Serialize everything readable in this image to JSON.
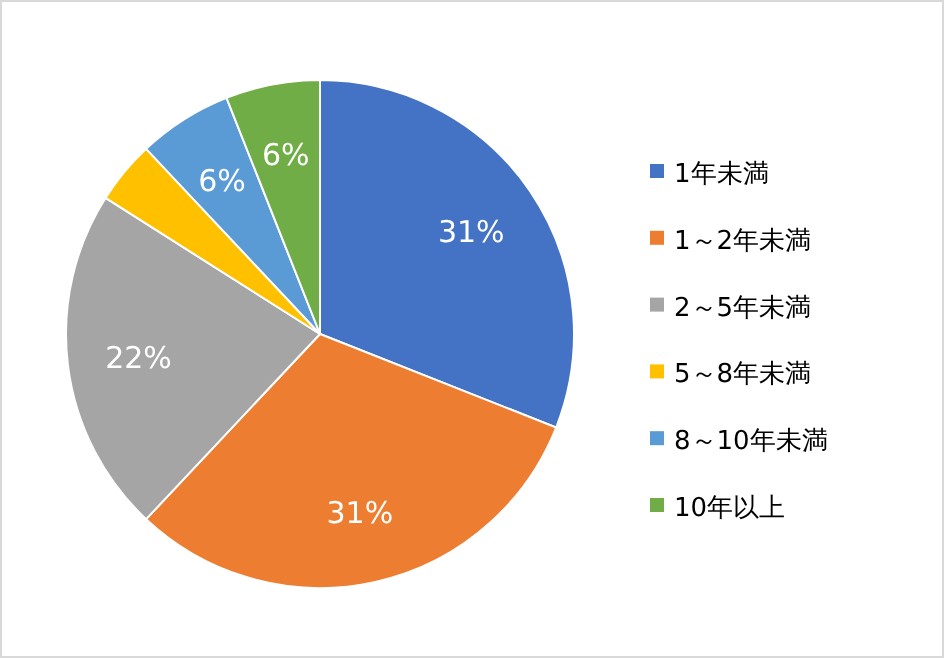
{
  "chart_data": {
    "type": "pie",
    "categories": [
      "1年未満",
      "1～2年未満",
      "2～5年未満",
      "5～8年未満",
      "8～10年未満",
      "10年以上"
    ],
    "values": [
      31,
      31,
      22,
      4,
      6,
      6
    ],
    "colors": [
      "#4472c4",
      "#ed7d31",
      "#a5a5a5",
      "#ffc000",
      "#5b9bd5",
      "#70ad47"
    ],
    "value_labels": [
      "31%",
      "31%",
      "22%",
      null,
      "6%",
      "6%"
    ],
    "legend": "right"
  }
}
